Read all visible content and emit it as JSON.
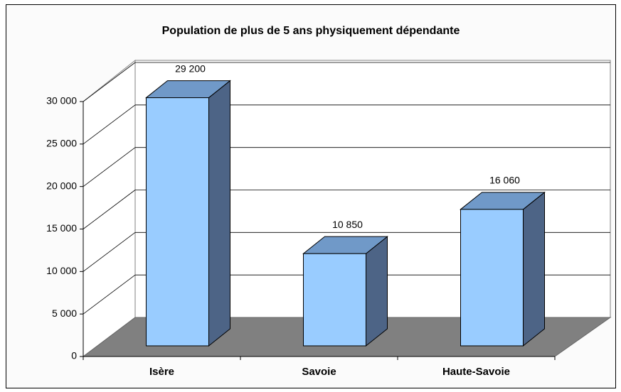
{
  "chart_data": {
    "type": "bar3d",
    "title": "Population de plus de 5 ans physiquement dépendante",
    "categories": [
      "Isère",
      "Savoie",
      "Haute-Savoie"
    ],
    "values": [
      29200,
      10850,
      16060
    ],
    "value_labels": [
      "29 200",
      "10 850",
      "16 060"
    ],
    "colors": {
      "front": "#99ccff",
      "side": "#4d6486",
      "top": "#7099c8"
    },
    "ylim": [
      0,
      30000
    ],
    "yticks": [
      0,
      {
        "value": 5000,
        "label": "5 000"
      },
      {
        "value": 10000,
        "label": "10 000"
      },
      {
        "value": 15000,
        "label": "15 000"
      },
      {
        "value": 20000,
        "label": "20 000"
      },
      {
        "value": 25000,
        "label": "25 000"
      },
      {
        "value": 30000,
        "label": "30 000"
      }
    ],
    "grid": true
  }
}
